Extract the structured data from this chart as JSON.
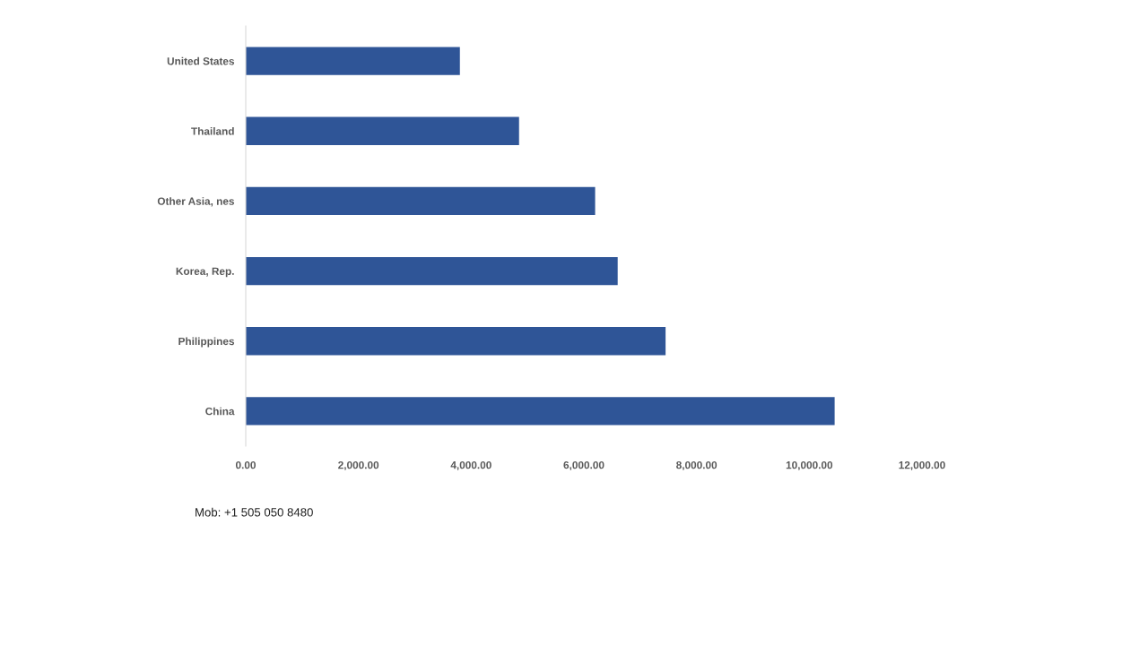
{
  "chart_data": {
    "type": "bar",
    "orientation": "horizontal",
    "categories": [
      "United States",
      "Thailand",
      "Other Asia, nes",
      "Korea, Rep.",
      "Philippines",
      "China"
    ],
    "values": [
      3800,
      4850,
      6200,
      6600,
      7450,
      10450
    ],
    "color": "#2f5597",
    "xlim": [
      0,
      12000
    ],
    "xticks": [
      {
        "value": 0,
        "label": "0.00"
      },
      {
        "value": 2000,
        "label": "2,000.00"
      },
      {
        "value": 4000,
        "label": "4,000.00"
      },
      {
        "value": 6000,
        "label": "6,000.00"
      },
      {
        "value": 8000,
        "label": "8,000.00"
      },
      {
        "value": 10000,
        "label": "10,000.00"
      },
      {
        "value": 12000,
        "label": "12,000.00"
      }
    ],
    "annotations": [
      "Mob: +1 505 050 8480"
    ]
  }
}
